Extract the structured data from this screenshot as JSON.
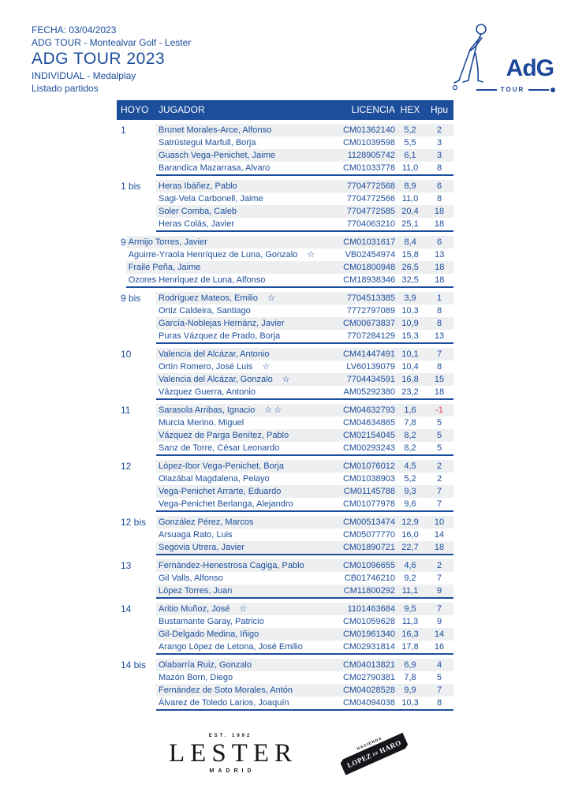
{
  "header": {
    "fecha": "FECHA: 03/04/2023",
    "tour_line": "ADG TOUR - Montealvar Golf - Lester",
    "title": "ADG TOUR 2023",
    "subtitle": "INDIVIDUAL - Medalplay",
    "listado": "Listado partidos"
  },
  "logo": {
    "adg": "AdG",
    "tour": "TOUR",
    "golfer_icon": "golfer-swing-line-art"
  },
  "colors": {
    "accent_blue": "#1d4e9b",
    "logo_navy": "#1d4799",
    "stripe_gray": "#edeff1",
    "negative_red": "#e04040",
    "logo_black": "#15161a"
  },
  "table": {
    "columns": [
      "HOYO",
      "JUGADOR",
      "LICENCIA",
      "HEX",
      "Hpu"
    ],
    "groups": [
      {
        "hoyo": "1",
        "players": [
          {
            "name": "Brunet Morales-Arce, Alfonso",
            "stars": 0,
            "licencia": "CM01362140",
            "hex": "5,2",
            "hpu": "2"
          },
          {
            "name": "Satrústegui Marfull, Borja",
            "stars": 0,
            "licencia": "CM01039598",
            "hex": "5,5",
            "hpu": "3"
          },
          {
            "name": "Guasch Vega-Penichet, Jaime",
            "stars": 0,
            "licencia": "1128905742",
            "hex": "6,1",
            "hpu": "3"
          },
          {
            "name": "Barandica Mazarrasa, Alvaro",
            "stars": 0,
            "licencia": "CM01033778",
            "hex": "11,0",
            "hpu": "8"
          }
        ]
      },
      {
        "hoyo": "1 bis",
        "players": [
          {
            "name": "Heras Ibáñez, Pablo",
            "stars": 0,
            "licencia": "7704772568",
            "hex": "8,9",
            "hpu": "6"
          },
          {
            "name": "Sagi-Vela Carbonell, Jaime",
            "stars": 0,
            "licencia": "7704772566",
            "hex": "11,0",
            "hpu": "8"
          },
          {
            "name": "Soler Comba, Caleb",
            "stars": 0,
            "licencia": "7704772585",
            "hex": "20,4",
            "hpu": "18"
          },
          {
            "name": "Heras Colás, Javier",
            "stars": 0,
            "licencia": "7704063210",
            "hex": "25,1",
            "hpu": "18"
          }
        ]
      },
      {
        "hoyo": "9",
        "players": [
          {
            "name": "Armijo Torres, Javier",
            "stars": 0,
            "licencia": "CM01031617",
            "hex": "8,4",
            "hpu": "6"
          },
          {
            "name": "Aguirre-Yraola Henríquez de Luna, Gonzalo",
            "stars": 1,
            "licencia": "VB02454974",
            "hex": "15,8",
            "hpu": "13"
          },
          {
            "name": "Fraile Peña, Jaime",
            "stars": 0,
            "licencia": "CM01800948",
            "hex": "26,5",
            "hpu": "18"
          },
          {
            "name": "Ozores Henriquez de Luna, Alfonso",
            "stars": 0,
            "licencia": "CM18938346",
            "hex": "32,5",
            "hpu": "18"
          }
        ]
      },
      {
        "hoyo": "9 bis",
        "players": [
          {
            "name": "Rodríguez Mateos, Emilio",
            "stars": 1,
            "licencia": "7704513385",
            "hex": "3,9",
            "hpu": "1"
          },
          {
            "name": "Ortiz Caldeira, Santiago",
            "stars": 0,
            "licencia": "7772797089",
            "hex": "10,3",
            "hpu": "8"
          },
          {
            "name": "García-Noblejas Hernánz, Javier",
            "stars": 0,
            "licencia": "CM00673837",
            "hex": "10,9",
            "hpu": "8"
          },
          {
            "name": "Puras Vázquez de Prado, Borja",
            "stars": 0,
            "licencia": "7707284129",
            "hex": "15,3",
            "hpu": "13"
          }
        ]
      },
      {
        "hoyo": "10",
        "players": [
          {
            "name": "Valencia del Alcázar, Antonio",
            "stars": 0,
            "licencia": "CM41447491",
            "hex": "10,1",
            "hpu": "7"
          },
          {
            "name": "Ortín Romero, José Luis",
            "stars": 1,
            "licencia": "LV60139079",
            "hex": "10,4",
            "hpu": "8"
          },
          {
            "name": "Valencia del Alcázar, Gonzalo",
            "stars": 1,
            "licencia": "7704434591",
            "hex": "16,8",
            "hpu": "15"
          },
          {
            "name": "Vázquez Guerra, Antonio",
            "stars": 0,
            "licencia": "AM05292380",
            "hex": "23,2",
            "hpu": "18"
          }
        ]
      },
      {
        "hoyo": "11",
        "players": [
          {
            "name": "Sarasola Arribas, Ignacio",
            "stars": 2,
            "licencia": "CM04632793",
            "hex": "1,6",
            "hpu": "-1"
          },
          {
            "name": "Murcia Merino, Miguel",
            "stars": 0,
            "licencia": "CM04634865",
            "hex": "7,8",
            "hpu": "5"
          },
          {
            "name": "Vázquez de Parga Benítez, Pablo",
            "stars": 0,
            "licencia": "CM02154045",
            "hex": "8,2",
            "hpu": "5"
          },
          {
            "name": "Sanz de Torre, César Leonardo",
            "stars": 0,
            "licencia": "CM00293243",
            "hex": "8,2",
            "hpu": "5"
          }
        ]
      },
      {
        "hoyo": "12",
        "players": [
          {
            "name": "López-Ibor Vega-Penichet, Borja",
            "stars": 0,
            "licencia": "CM01076012",
            "hex": "4,5",
            "hpu": "2"
          },
          {
            "name": "Olazábal Magdalena, Pelayo",
            "stars": 0,
            "licencia": "CM01038903",
            "hex": "5,2",
            "hpu": "2"
          },
          {
            "name": "Vega-Penichet Arrarte, Eduardo",
            "stars": 0,
            "licencia": "CM01145788",
            "hex": "9,3",
            "hpu": "7"
          },
          {
            "name": "Vega-Penichet Berlanga, Alejandro",
            "stars": 0,
            "licencia": "CM01077978",
            "hex": "9,6",
            "hpu": "7"
          }
        ]
      },
      {
        "hoyo": "12 bis",
        "players": [
          {
            "name": "González Pérez, Marcos",
            "stars": 0,
            "licencia": "CM00513474",
            "hex": "12,9",
            "hpu": "10"
          },
          {
            "name": "Arsuaga Rato, Luis",
            "stars": 0,
            "licencia": "CM05077770",
            "hex": "16,0",
            "hpu": "14"
          },
          {
            "name": "Segovia Utrera, Javier",
            "stars": 0,
            "licencia": "CM01890721",
            "hex": "22,7",
            "hpu": "18"
          }
        ]
      },
      {
        "hoyo": "13",
        "players": [
          {
            "name": "Fernández-Henestrosa Cagiga, Pablo",
            "stars": 0,
            "licencia": "CM01096655",
            "hex": "4,6",
            "hpu": "2"
          },
          {
            "name": "Gil Valls, Alfonso",
            "stars": 0,
            "licencia": "CB01746210",
            "hex": "9,2",
            "hpu": "7"
          },
          {
            "name": "López Torres, Juan",
            "stars": 0,
            "licencia": "CM11800292",
            "hex": "11,1",
            "hpu": "9"
          }
        ]
      },
      {
        "hoyo": "14",
        "players": [
          {
            "name": "Aritio Muñoz, José",
            "stars": 1,
            "licencia": "1101463684",
            "hex": "9,5",
            "hpu": "7"
          },
          {
            "name": "Bustamante Garay, Patricio",
            "stars": 0,
            "licencia": "CM01059628",
            "hex": "11,3",
            "hpu": "9"
          },
          {
            "name": "Gil-Delgado Medina, Iñigo",
            "stars": 0,
            "licencia": "CM01961340",
            "hex": "16,3",
            "hpu": "14"
          },
          {
            "name": "Arango López de Letona, José Emilio",
            "stars": 0,
            "licencia": "CM02931814",
            "hex": "17,8",
            "hpu": "16"
          }
        ]
      },
      {
        "hoyo": "14 bis",
        "players": [
          {
            "name": "Olabarría Ruiz, Gonzalo",
            "stars": 0,
            "licencia": "CM04013821",
            "hex": "6,9",
            "hpu": "4"
          },
          {
            "name": "Mazón Born, Diego",
            "stars": 0,
            "licencia": "CM02790381",
            "hex": "7,8",
            "hpu": "5"
          },
          {
            "name": "Fernández de Soto Morales, Antón",
            "stars": 0,
            "licencia": "CM04028528",
            "hex": "9,9",
            "hpu": "7"
          },
          {
            "name": "Álvarez de Toledo Larios, Joaquín",
            "stars": 0,
            "licencia": "CM04094038",
            "hex": "10,3",
            "hpu": "8"
          }
        ]
      }
    ]
  },
  "footer": {
    "lester": {
      "est": "EST. 1992",
      "name": "LESTER",
      "city": "MADRID"
    },
    "lopez_haro": {
      "hacienda": "HACIENDA",
      "name1": "LOPEZ",
      "de": "DE",
      "name2": "HARO"
    }
  }
}
